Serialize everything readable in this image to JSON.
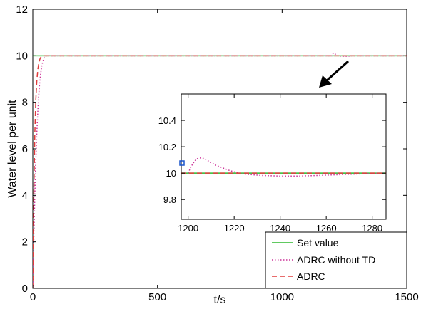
{
  "chart_data": [
    {
      "type": "line",
      "panel": "main",
      "xlabel": "t/s",
      "ylabel": "Water level per unit",
      "xlim": [
        0,
        1500
      ],
      "ylim": [
        0,
        12
      ],
      "xticks": [
        0,
        500,
        1000,
        1500
      ],
      "yticks": [
        0,
        2,
        4,
        6,
        8,
        10,
        12
      ],
      "grid": false,
      "legend_position": "bottom-right",
      "series": [
        {
          "name": "Set value",
          "color": "#2db82d",
          "style": "solid",
          "x": [
            0,
            1500
          ],
          "y": [
            10,
            10
          ]
        },
        {
          "name": "ADRC without TD",
          "color": "#cc3399",
          "style": "dotted",
          "x": [
            0,
            5,
            10,
            15,
            20,
            25,
            30,
            35,
            40,
            45,
            50,
            55,
            60,
            70,
            1200,
            1203,
            1206,
            1212,
            1222,
            1240,
            1260,
            1285,
            1500
          ],
          "y": [
            0,
            2.6,
            4.8,
            6.4,
            7.6,
            8.5,
            9.1,
            9.5,
            9.75,
            9.9,
            9.97,
            10.0,
            10.01,
            10.0,
            10.0,
            10.08,
            10.12,
            10.08,
            10.0,
            9.98,
            9.98,
            10.0,
            10.0
          ]
        },
        {
          "name": "ADRC",
          "color": "#e03c3c",
          "style": "dashed",
          "x": [
            0,
            4,
            8,
            12,
            16,
            20,
            25,
            30,
            35,
            45,
            1500
          ],
          "y": [
            0,
            4.0,
            6.6,
            8.1,
            8.9,
            9.4,
            9.75,
            9.9,
            9.97,
            10.0,
            10.0
          ]
        }
      ]
    },
    {
      "type": "line",
      "panel": "inset",
      "xlim": [
        1197,
        1286
      ],
      "ylim": [
        9.65,
        10.6
      ],
      "xticks": [
        1200,
        1220,
        1240,
        1260,
        1280
      ],
      "yticks": [
        9.8,
        10,
        10.2,
        10.4
      ],
      "ytick_labels": [
        "9.8",
        "10",
        "10.2",
        "10.4"
      ],
      "series": [
        {
          "name": "Set value",
          "color": "#2db82d",
          "style": "solid",
          "x": [
            1197,
            1286
          ],
          "y": [
            10,
            10
          ]
        },
        {
          "name": "ADRC without TD",
          "color": "#cc3399",
          "style": "dotted",
          "x": [
            1200,
            1201,
            1202,
            1203,
            1204,
            1205,
            1206,
            1207,
            1208,
            1210,
            1212,
            1215,
            1218,
            1222,
            1226,
            1232,
            1240,
            1248,
            1256,
            1264,
            1272,
            1280,
            1286
          ],
          "y": [
            10.0,
            10.04,
            10.07,
            10.095,
            10.11,
            10.115,
            10.115,
            10.11,
            10.1,
            10.08,
            10.06,
            10.04,
            10.02,
            10.0,
            9.99,
            9.982,
            9.978,
            9.978,
            9.982,
            9.987,
            9.992,
            9.997,
            10.0
          ]
        },
        {
          "name": "ADRC",
          "color": "#e03c3c",
          "style": "dashed",
          "x": [
            1197,
            1286
          ],
          "y": [
            10.0,
            10.0
          ]
        }
      ]
    }
  ]
}
